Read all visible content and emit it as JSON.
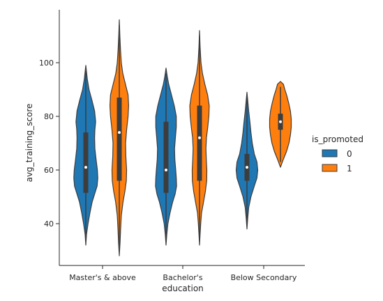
{
  "chart_data": {
    "type": "violin",
    "xlabel": "education",
    "ylabel": "avg_training_score",
    "categories": [
      "Master's & above",
      "Bachelor's",
      "Below Secondary"
    ],
    "yticks": [
      40,
      60,
      80,
      100
    ],
    "ylim": [
      25,
      117
    ],
    "grid": false,
    "legend": {
      "title": "is_promoted",
      "placement": "right",
      "entries": [
        {
          "label": "0",
          "color": "#1f77b4"
        },
        {
          "label": "1",
          "color": "#ff7f0e"
        }
      ]
    },
    "series": [
      {
        "name": "0",
        "color": "#1f77b4",
        "violins": [
          {
            "category": "Master's & above",
            "min": 32,
            "max": 99,
            "q1": 51.5,
            "median": 61,
            "q3": 74,
            "profile": [
              [
                32,
                0
              ],
              [
                36,
                0.05
              ],
              [
                40,
                0.15
              ],
              [
                44,
                0.28
              ],
              [
                48,
                0.43
              ],
              [
                51,
                0.6
              ],
              [
                54,
                0.77
              ],
              [
                57,
                0.82
              ],
              [
                60,
                0.79
              ],
              [
                64,
                0.7
              ],
              [
                68,
                0.62
              ],
              [
                72,
                0.6
              ],
              [
                75,
                0.62
              ],
              [
                78,
                0.67
              ],
              [
                82,
                0.6
              ],
              [
                86,
                0.42
              ],
              [
                90,
                0.22
              ],
              [
                94,
                0.1
              ],
              [
                99,
                0
              ]
            ]
          },
          {
            "category": "Bachelor's",
            "min": 32,
            "max": 98,
            "q1": 51.5,
            "median": 60,
            "q3": 78,
            "profile": [
              [
                32,
                0
              ],
              [
                36,
                0.05
              ],
              [
                40,
                0.13
              ],
              [
                44,
                0.27
              ],
              [
                48,
                0.45
              ],
              [
                51,
                0.62
              ],
              [
                54,
                0.72
              ],
              [
                57,
                0.7
              ],
              [
                60,
                0.66
              ],
              [
                64,
                0.6
              ],
              [
                68,
                0.58
              ],
              [
                72,
                0.64
              ],
              [
                76,
                0.7
              ],
              [
                80,
                0.7
              ],
              [
                84,
                0.56
              ],
              [
                88,
                0.37
              ],
              [
                92,
                0.18
              ],
              [
                95,
                0.08
              ],
              [
                98,
                0
              ]
            ]
          },
          {
            "category": "Below Secondary",
            "min": 38,
            "max": 89,
            "q1": 56,
            "median": 61,
            "q3": 66,
            "profile": [
              [
                38,
                0
              ],
              [
                42,
                0.05
              ],
              [
                46,
                0.12
              ],
              [
                50,
                0.27
              ],
              [
                54,
                0.5
              ],
              [
                57,
                0.68
              ],
              [
                60,
                0.74
              ],
              [
                63,
                0.68
              ],
              [
                66,
                0.5
              ],
              [
                70,
                0.36
              ],
              [
                74,
                0.27
              ],
              [
                78,
                0.2
              ],
              [
                82,
                0.12
              ],
              [
                86,
                0.05
              ],
              [
                89,
                0
              ]
            ]
          }
        ]
      },
      {
        "name": "1",
        "color": "#ff7f0e",
        "violins": [
          {
            "category": "Master's & above",
            "min": 28,
            "max": 116,
            "q1": 56,
            "median": 74,
            "q3": 87,
            "profile": [
              [
                28,
                0
              ],
              [
                33,
                0.05
              ],
              [
                38,
                0.09
              ],
              [
                43,
                0.14
              ],
              [
                48,
                0.25
              ],
              [
                52,
                0.38
              ],
              [
                56,
                0.48
              ],
              [
                60,
                0.5
              ],
              [
                65,
                0.45
              ],
              [
                70,
                0.43
              ],
              [
                75,
                0.5
              ],
              [
                80,
                0.6
              ],
              [
                84,
                0.64
              ],
              [
                88,
                0.6
              ],
              [
                92,
                0.42
              ],
              [
                96,
                0.24
              ],
              [
                100,
                0.14
              ],
              [
                105,
                0.08
              ],
              [
                110,
                0.04
              ],
              [
                116,
                0
              ]
            ]
          },
          {
            "category": "Bachelor's",
            "min": 32,
            "max": 112,
            "q1": 56,
            "median": 72,
            "q3": 84,
            "profile": [
              [
                32,
                0
              ],
              [
                36,
                0.04
              ],
              [
                40,
                0.08
              ],
              [
                44,
                0.14
              ],
              [
                48,
                0.27
              ],
              [
                52,
                0.4
              ],
              [
                56,
                0.49
              ],
              [
                60,
                0.5
              ],
              [
                64,
                0.46
              ],
              [
                68,
                0.44
              ],
              [
                72,
                0.47
              ],
              [
                76,
                0.56
              ],
              [
                80,
                0.64
              ],
              [
                84,
                0.66
              ],
              [
                88,
                0.55
              ],
              [
                92,
                0.36
              ],
              [
                96,
                0.2
              ],
              [
                100,
                0.1
              ],
              [
                106,
                0.04
              ],
              [
                112,
                0
              ]
            ]
          },
          {
            "category": "Below Secondary",
            "min": 61,
            "max": 93,
            "q1": 75,
            "median": 78,
            "q3": 81,
            "profile": [
              [
                61,
                0
              ],
              [
                64,
                0.2
              ],
              [
                67,
                0.42
              ],
              [
                70,
                0.58
              ],
              [
                73,
                0.68
              ],
              [
                76,
                0.74
              ],
              [
                79,
                0.74
              ],
              [
                82,
                0.68
              ],
              [
                85,
                0.56
              ],
              [
                88,
                0.42
              ],
              [
                90,
                0.3
              ],
              [
                92,
                0.2
              ],
              [
                93,
                0
              ]
            ]
          }
        ]
      }
    ]
  }
}
